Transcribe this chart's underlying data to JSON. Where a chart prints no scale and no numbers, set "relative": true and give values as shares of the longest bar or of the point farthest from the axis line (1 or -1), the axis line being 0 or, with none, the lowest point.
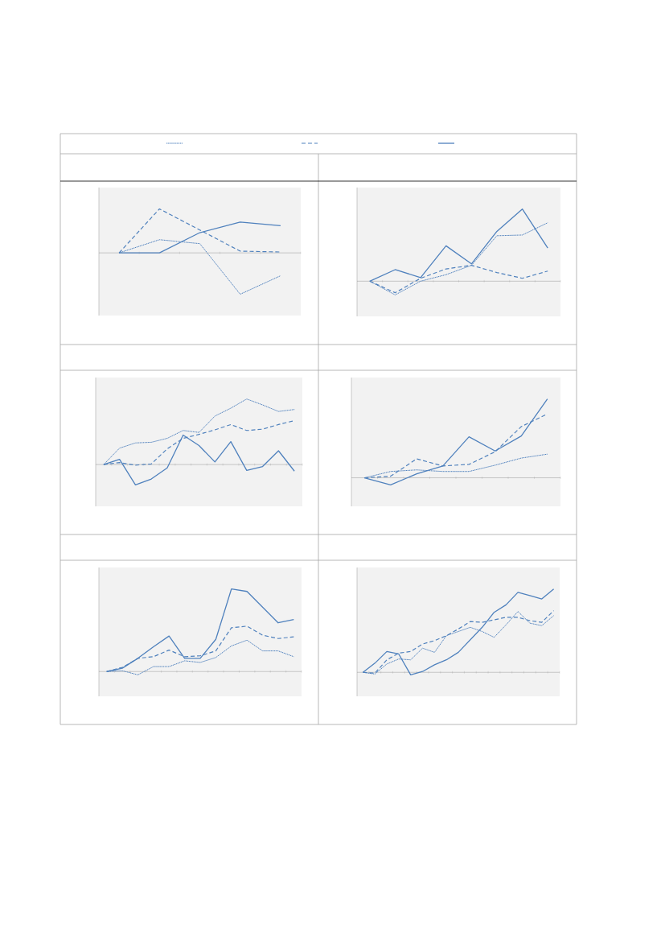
{
  "chart_data": [
    {
      "type": "line",
      "relative": true,
      "categories": [
        null,
        null,
        null,
        null,
        null
      ],
      "series": [
        {
          "color": "#4f81bd",
          "line_style": "dotted",
          "values": [
            0,
            0.3,
            0.21,
            -0.94,
            -0.52
          ]
        },
        {
          "color": "#4f81bd",
          "line_style": "dashed",
          "values": [
            0,
            1,
            0.52,
            0.04,
            0.02
          ]
        },
        {
          "color": "#4f81bd",
          "line_style": "solid",
          "values": [
            0,
            0,
            0.46,
            0.7,
            0.62
          ]
        }
      ]
    },
    {
      "type": "line",
      "relative": true,
      "categories": [
        null,
        null,
        null,
        null,
        null,
        null,
        null,
        null
      ],
      "series": [
        {
          "color": "#4f81bd",
          "line_style": "dotted",
          "values": [
            0,
            -0.19,
            0,
            0.09,
            0.22,
            0.63,
            0.64,
            0.81
          ]
        },
        {
          "color": "#4f81bd",
          "line_style": "dashed",
          "values": [
            0,
            -0.16,
            0.04,
            0.17,
            0.22,
            0.12,
            0.04,
            0.14
          ]
        },
        {
          "color": "#4f81bd",
          "line_style": "solid",
          "values": [
            0,
            0.16,
            0.05,
            0.49,
            0.24,
            0.69,
            1,
            0.46
          ]
        }
      ]
    },
    {
      "type": "line",
      "relative": true,
      "categories": [
        null,
        null,
        null,
        null,
        null,
        null,
        null,
        null,
        null,
        null,
        null,
        null,
        null
      ],
      "series": [
        {
          "color": "#4f81bd",
          "line_style": "dotted",
          "values": [
            0,
            0.25,
            0.33,
            0.34,
            0.4,
            0.52,
            0.49,
            0.74,
            0.86,
            1,
            0.91,
            0.81,
            0.84
          ]
        },
        {
          "color": "#4f81bd",
          "line_style": "dashed",
          "values": [
            0,
            0.03,
            -0.01,
            0.01,
            0.24,
            0.4,
            0.46,
            0.53,
            0.61,
            0.52,
            0.54,
            0.61,
            0.67
          ]
        },
        {
          "color": "#4f81bd",
          "line_style": "solid",
          "values": [
            0,
            0.08,
            -0.31,
            -0.22,
            -0.05,
            0.45,
            0.29,
            0.04,
            0.35,
            -0.09,
            -0.03,
            0.21,
            -0.1
          ]
        }
      ]
    },
    {
      "type": "line",
      "relative": true,
      "categories": [
        null,
        null,
        null,
        null,
        null,
        null,
        null,
        null
      ],
      "series": [
        {
          "color": "#4f81bd",
          "line_style": "dotted",
          "values": [
            0,
            0.08,
            0.1,
            0.08,
            0.08,
            0.16,
            0.25,
            0.3
          ]
        },
        {
          "color": "#4f81bd",
          "line_style": "dashed",
          "values": [
            0,
            0.02,
            0.24,
            0.15,
            0.17,
            0.33,
            0.65,
            0.81
          ]
        },
        {
          "color": "#4f81bd",
          "line_style": "solid",
          "values": [
            0,
            -0.09,
            0.05,
            0.15,
            0.52,
            0.34,
            0.53,
            1
          ]
        }
      ]
    },
    {
      "type": "line",
      "relative": true,
      "categories": [
        null,
        null,
        null,
        null,
        null,
        null,
        null,
        null,
        null,
        null,
        null,
        null,
        null
      ],
      "series": [
        {
          "color": "#4f81bd",
          "line_style": "dotted",
          "values": [
            0,
            0.01,
            -0.04,
            0.06,
            0.06,
            0.13,
            0.11,
            0.17,
            0.31,
            0.38,
            0.25,
            0.25,
            0.18
          ]
        },
        {
          "color": "#4f81bd",
          "line_style": "dashed",
          "values": [
            0,
            0.05,
            0.16,
            0.18,
            0.26,
            0.18,
            0.19,
            0.25,
            0.53,
            0.55,
            0.44,
            0.4,
            0.42
          ]
        },
        {
          "color": "#4f81bd",
          "line_style": "solid",
          "values": [
            0,
            0.04,
            0.16,
            0.3,
            0.43,
            0.16,
            0.16,
            0.39,
            1,
            0.97,
            0.78,
            0.59,
            0.63
          ]
        }
      ]
    },
    {
      "type": "line",
      "relative": true,
      "categories": [
        null,
        null,
        null,
        null,
        null,
        null,
        null,
        null,
        null,
        null,
        null,
        null,
        null,
        null,
        null,
        null,
        null
      ],
      "series": [
        {
          "color": "#4f81bd",
          "line_style": "dotted",
          "values": [
            0,
            -0.02,
            0.1,
            0.16,
            0.15,
            0.29,
            0.24,
            0.44,
            0.49,
            0.54,
            0.49,
            0.42,
            0.57,
            0.73,
            0.59,
            0.56,
            0.68
          ]
        },
        {
          "color": "#4f81bd",
          "line_style": "dashed",
          "values": [
            0,
            -0.01,
            0.15,
            0.23,
            0.25,
            0.34,
            0.38,
            0.44,
            0.52,
            0.61,
            0.6,
            0.63,
            0.66,
            0.66,
            0.62,
            0.6,
            0.74
          ]
        },
        {
          "color": "#4f81bd",
          "line_style": "solid",
          "values": [
            0,
            0.11,
            0.25,
            0.22,
            -0.03,
            0.01,
            0.09,
            0.15,
            0.24,
            0.39,
            0.54,
            0.72,
            0.81,
            0.96,
            0.92,
            0.88,
            1
          ]
        }
      ]
    }
  ]
}
